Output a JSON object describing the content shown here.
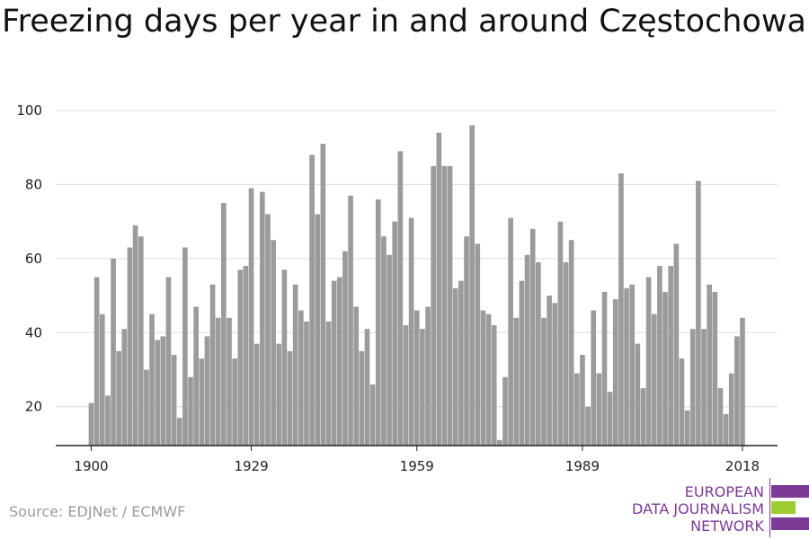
{
  "title": "Freezing days per year in and around Częstochowa",
  "source": "Source: EDJNet / ECMWF",
  "logo": {
    "lines": [
      "EUROPEAN",
      "DATA JOURNALISM",
      "NETWORK"
    ],
    "colors": {
      "purple": "#7b3a96",
      "green": "#9ccc2e"
    }
  },
  "colors": {
    "bar": "#9b9b9b",
    "grid": "#dddddd",
    "axis": "#222222"
  },
  "chart_data": {
    "type": "bar",
    "title": "Freezing days per year in and around Częstochowa",
    "xlabel": "",
    "ylabel": "",
    "x_start": 1900,
    "x_ticks": [
      1900,
      1929,
      1959,
      1989,
      2018
    ],
    "y_ticks": [
      20,
      40,
      60,
      80,
      100
    ],
    "ylim": [
      9.5,
      100
    ],
    "grid": true,
    "values": [
      21,
      55,
      45,
      23,
      60,
      35,
      41,
      63,
      69,
      66,
      30,
      45,
      38,
      39,
      55,
      34,
      17,
      63,
      28,
      47,
      33,
      39,
      53,
      44,
      75,
      44,
      33,
      57,
      58,
      79,
      37,
      78,
      72,
      65,
      37,
      57,
      35,
      53,
      46,
      43,
      88,
      72,
      91,
      43,
      54,
      55,
      62,
      77,
      47,
      35,
      41,
      26,
      76,
      66,
      61,
      70,
      89,
      42,
      71,
      46,
      41,
      47,
      85,
      94,
      85,
      85,
      52,
      54,
      66,
      96,
      64,
      46,
      45,
      42,
      11,
      28,
      71,
      44,
      54,
      61,
      68,
      59,
      44,
      50,
      48,
      70,
      59,
      65,
      29,
      34,
      20,
      46,
      29,
      51,
      24,
      49,
      83,
      52,
      53,
      37,
      25,
      55,
      45,
      58,
      51,
      58,
      64,
      33,
      19,
      41,
      81,
      41,
      53,
      51,
      25,
      18,
      29,
      39,
      44
    ]
  }
}
